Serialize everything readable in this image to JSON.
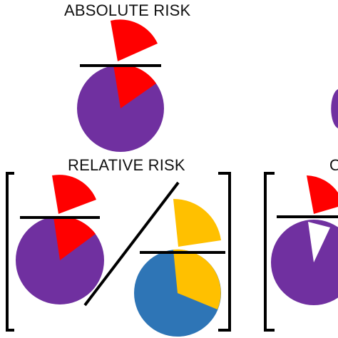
{
  "titles": {
    "absolute": "ABSOLUTE RISK",
    "relative": "RELATIVE RISK",
    "cropped": "O"
  },
  "colors": {
    "red": "#ff0000",
    "purple": "#7030a0",
    "gold": "#ffc000",
    "blue": "#2e75b6",
    "ink": "#000000"
  }
}
